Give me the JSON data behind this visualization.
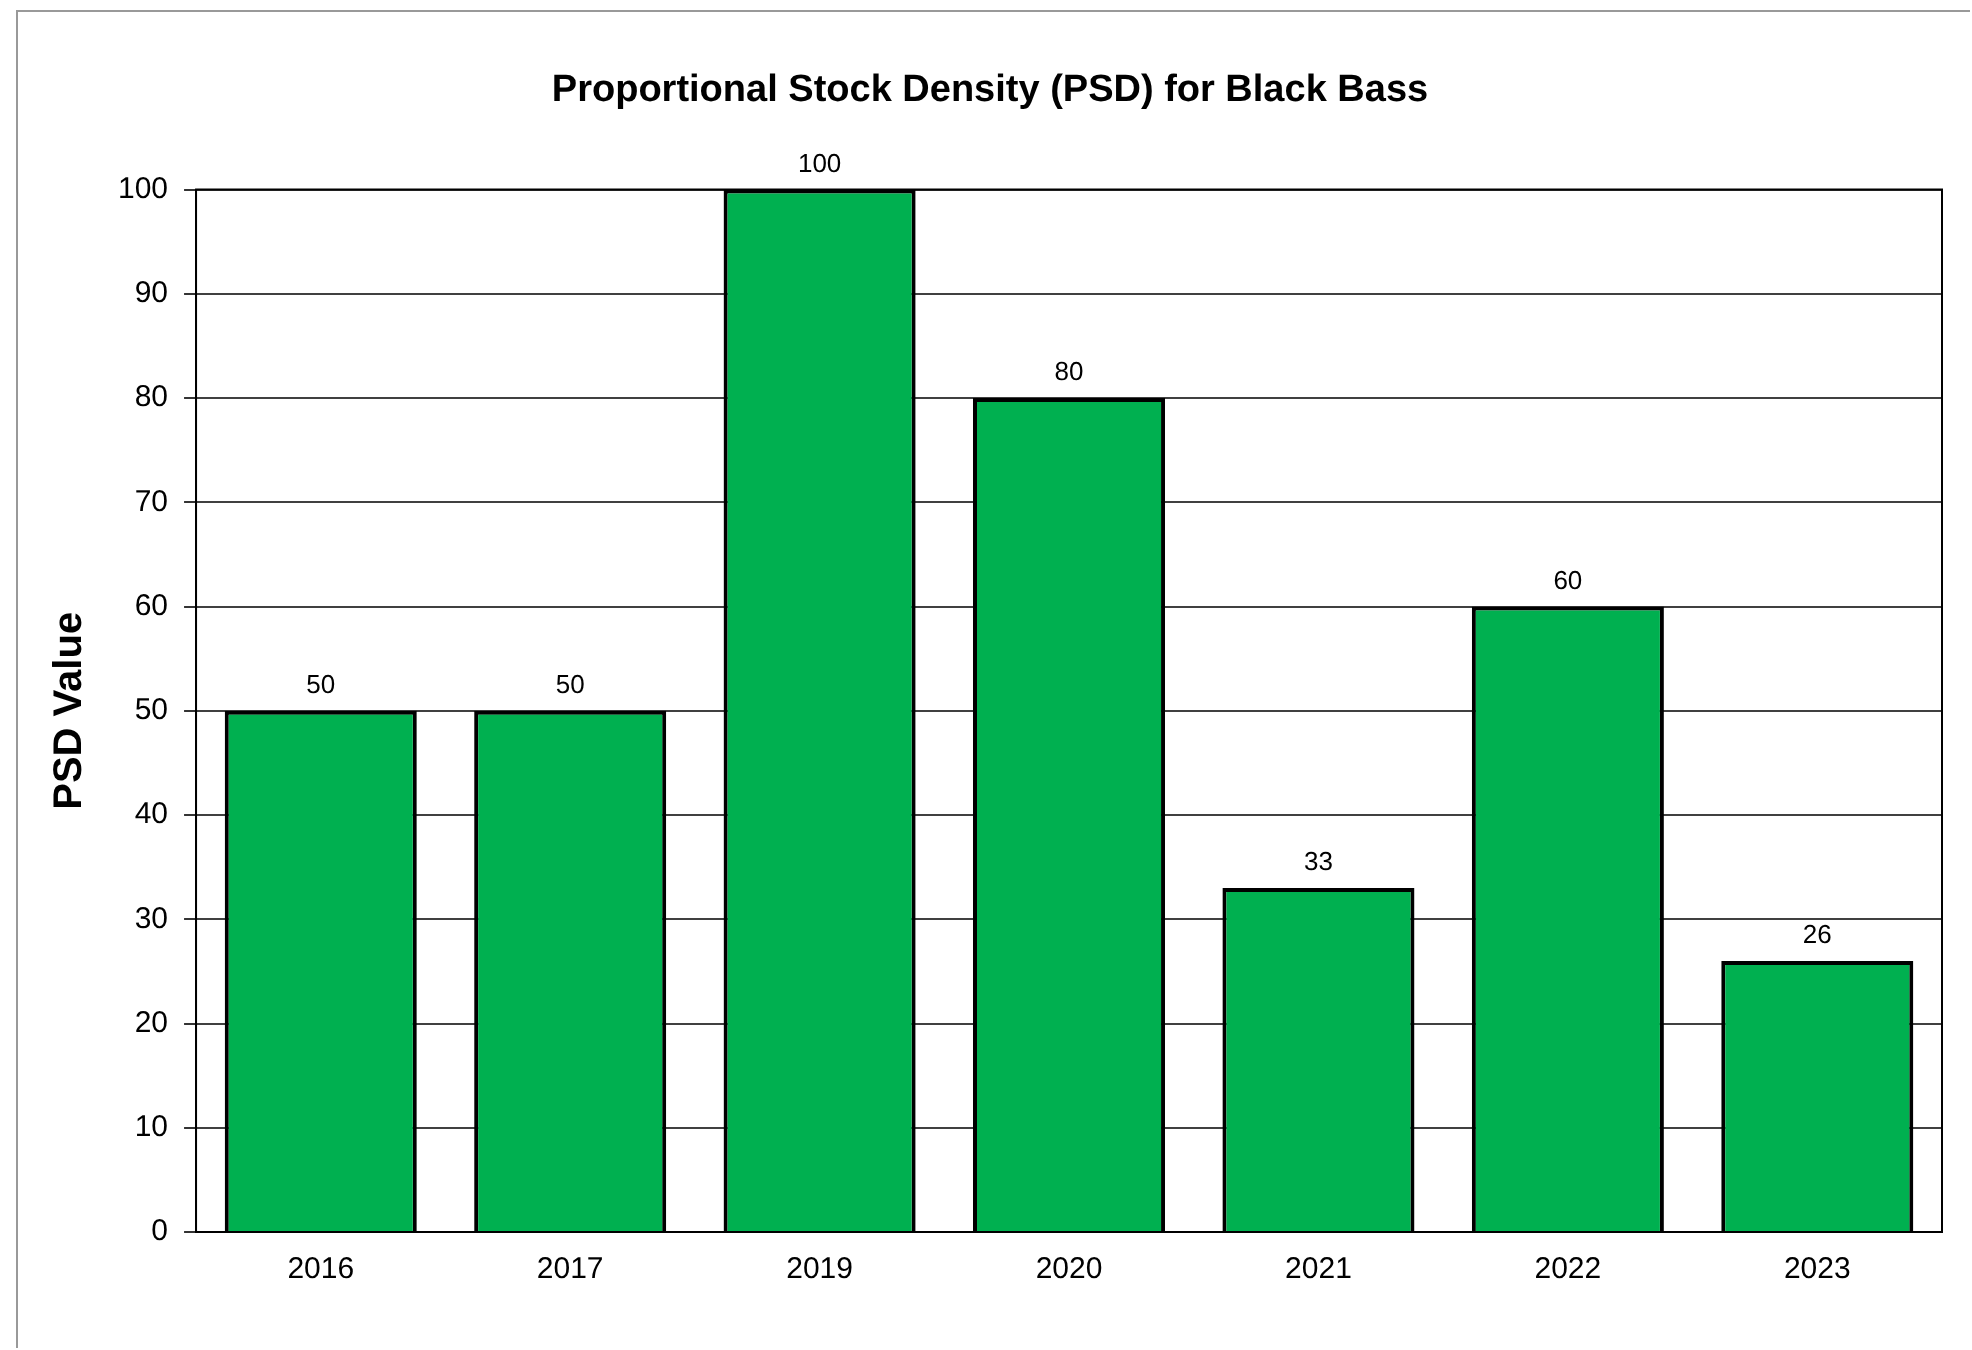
{
  "chart_data": {
    "type": "bar",
    "title": "Proportional Stock Density (PSD) for Black Bass",
    "ylabel": "PSD Value",
    "categories": [
      "2016",
      "2017",
      "2019",
      "2020",
      "2021",
      "2022",
      "2023"
    ],
    "values": [
      50,
      50,
      100,
      80,
      33,
      60,
      26
    ],
    "color": "#00b050",
    "ylim": [
      0,
      100
    ],
    "yticks": [
      0,
      10,
      20,
      30,
      40,
      50,
      60,
      70,
      80,
      90,
      100
    ],
    "grid": "y",
    "data_labels": true
  }
}
